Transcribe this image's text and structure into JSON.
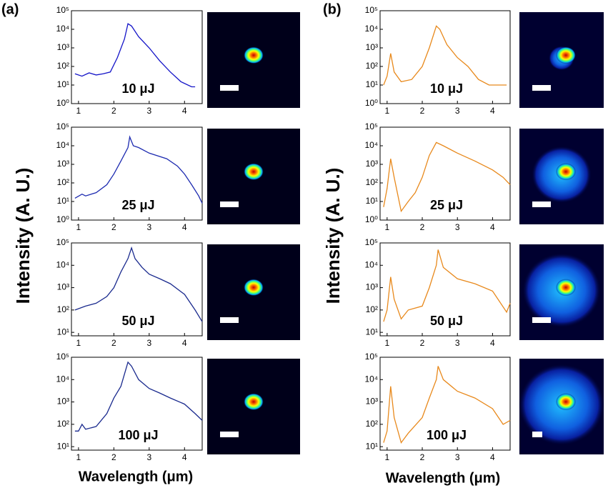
{
  "panels": [
    {
      "label": "(a)",
      "ylabel": "Intensity (A. U.)",
      "xlabel": "Wavelength (μm)"
    },
    {
      "label": "(b)",
      "ylabel": "Intensity (A. U.)",
      "xlabel": "Wavelength (μm)"
    }
  ],
  "chart_data": [
    {
      "type": "line",
      "annotation": "10 μJ",
      "color": "#1414c8",
      "log_y": true,
      "x": [
        0.9,
        1.1,
        1.3,
        1.5,
        1.7,
        1.9,
        2.1,
        2.3,
        2.4,
        2.5,
        2.7,
        3.0,
        3.3,
        3.6,
        3.9,
        4.2,
        4.3
      ],
      "values": [
        40,
        30,
        45,
        35,
        40,
        50,
        300,
        3000,
        20000,
        15000,
        4000,
        1000,
        200,
        50,
        15,
        8,
        8
      ],
      "xlim": [
        0.8,
        4.5
      ],
      "xticks": [
        1,
        2,
        3,
        4
      ],
      "ylim": [
        1,
        100000
      ],
      "yticks": [
        {
          "value": 1,
          "label": "10⁰"
        },
        {
          "value": 10,
          "label": "10¹"
        },
        {
          "value": 100,
          "label": "10²"
        },
        {
          "value": 1000,
          "label": "10³"
        },
        {
          "value": 10000,
          "label": "10⁴"
        },
        {
          "value": 100000,
          "label": "10⁵"
        }
      ]
    },
    {
      "type": "line",
      "annotation": "25 μJ",
      "color": "#1c2ab0",
      "log_y": true,
      "x": [
        0.9,
        1.1,
        1.2,
        1.5,
        1.8,
        2.0,
        2.2,
        2.4,
        2.45,
        2.55,
        2.7,
        3.0,
        3.5,
        3.8,
        4.0,
        4.2,
        4.4,
        4.5
      ],
      "values": [
        15,
        25,
        20,
        30,
        80,
        300,
        1500,
        8000,
        30000,
        10000,
        8000,
        4000,
        2000,
        800,
        300,
        80,
        20,
        8
      ],
      "xlim": [
        0.8,
        4.5
      ],
      "xticks": [
        1,
        2,
        3,
        4
      ],
      "ylim": [
        1,
        100000
      ],
      "yticks": [
        {
          "value": 1,
          "label": "10⁰"
        },
        {
          "value": 10,
          "label": "10¹"
        },
        {
          "value": 100,
          "label": "10²"
        },
        {
          "value": 1000,
          "label": "10³"
        },
        {
          "value": 10000,
          "label": "10⁴"
        },
        {
          "value": 100000,
          "label": "10⁵"
        }
      ]
    },
    {
      "type": "line",
      "annotation": "50 μJ",
      "color": "#1a2a8e",
      "log_y": true,
      "x": [
        0.9,
        1.2,
        1.5,
        1.8,
        2.0,
        2.2,
        2.4,
        2.5,
        2.6,
        2.8,
        3.0,
        3.3,
        3.6,
        4.0,
        4.3,
        4.5
      ],
      "values": [
        100,
        150,
        200,
        400,
        1000,
        5000,
        20000,
        60000,
        20000,
        8000,
        4000,
        2500,
        1500,
        500,
        100,
        30
      ],
      "xlim": [
        0.8,
        4.5
      ],
      "xticks": [
        1,
        2,
        3,
        4
      ],
      "ylim": [
        7,
        100000
      ],
      "yticks": [
        {
          "value": 10,
          "label": "10¹"
        },
        {
          "value": 100,
          "label": "10²"
        },
        {
          "value": 1000,
          "label": "10³"
        },
        {
          "value": 10000,
          "label": "10⁴"
        },
        {
          "value": 100000,
          "label": "10⁵"
        }
      ]
    },
    {
      "type": "line",
      "annotation": "100 μJ",
      "color": "#1a2a8e",
      "log_y": true,
      "x": [
        0.9,
        1.0,
        1.1,
        1.2,
        1.5,
        1.8,
        2.0,
        2.2,
        2.4,
        2.5,
        2.7,
        3.0,
        3.3,
        3.6,
        4.0,
        4.3,
        4.5
      ],
      "values": [
        50,
        50,
        100,
        60,
        80,
        300,
        1500,
        5000,
        60000,
        40000,
        10000,
        4000,
        2500,
        1500,
        800,
        300,
        150
      ],
      "xlim": [
        0.8,
        4.5
      ],
      "xticks": [
        1,
        2,
        3,
        4
      ],
      "ylim": [
        7,
        100000
      ],
      "yticks": [
        {
          "value": 10,
          "label": "10¹"
        },
        {
          "value": 100,
          "label": "10²"
        },
        {
          "value": 1000,
          "label": "10³"
        },
        {
          "value": 10000,
          "label": "10⁴"
        },
        {
          "value": 100000,
          "label": "10⁵"
        }
      ]
    },
    {
      "type": "line",
      "annotation": "10 μJ",
      "color": "#e8891c",
      "log_y": true,
      "x": [
        0.9,
        1.0,
        1.1,
        1.2,
        1.4,
        1.7,
        2.0,
        2.2,
        2.4,
        2.5,
        2.7,
        3.0,
        3.3,
        3.6,
        3.9,
        4.4
      ],
      "values": [
        10,
        30,
        500,
        50,
        15,
        20,
        100,
        1000,
        15000,
        10000,
        1500,
        300,
        100,
        20,
        10,
        10
      ],
      "xlim": [
        0.8,
        4.5
      ],
      "xticks": [
        1,
        2,
        3,
        4
      ],
      "ylim": [
        1,
        100000
      ],
      "yticks": [
        {
          "value": 1,
          "label": "10⁰"
        },
        {
          "value": 10,
          "label": "10¹"
        },
        {
          "value": 100,
          "label": "10²"
        },
        {
          "value": 1000,
          "label": "10³"
        },
        {
          "value": 10000,
          "label": "10⁴"
        },
        {
          "value": 100000,
          "label": "10⁵"
        }
      ]
    },
    {
      "type": "line",
      "annotation": "25 μJ",
      "color": "#e8891c",
      "log_y": true,
      "x": [
        0.9,
        1.0,
        1.1,
        1.2,
        1.4,
        1.6,
        1.8,
        2.0,
        2.2,
        2.4,
        2.6,
        3.0,
        3.5,
        4.0,
        4.3,
        4.5
      ],
      "values": [
        5,
        50,
        2000,
        200,
        3,
        10,
        30,
        200,
        3000,
        15000,
        10000,
        4000,
        1500,
        500,
        200,
        80
      ],
      "xlim": [
        0.8,
        4.5
      ],
      "xticks": [
        1,
        2,
        3,
        4
      ],
      "ylim": [
        1,
        100000
      ],
      "yticks": [
        {
          "value": 1,
          "label": "10⁰"
        },
        {
          "value": 10,
          "label": "10¹"
        },
        {
          "value": 100,
          "label": "10²"
        },
        {
          "value": 1000,
          "label": "10³"
        },
        {
          "value": 10000,
          "label": "10⁴"
        },
        {
          "value": 100000,
          "label": "10⁵"
        }
      ]
    },
    {
      "type": "line",
      "annotation": "50 μJ",
      "color": "#e8891c",
      "log_y": true,
      "x": [
        0.9,
        1.0,
        1.1,
        1.2,
        1.4,
        1.6,
        2.0,
        2.2,
        2.4,
        2.45,
        2.6,
        3.0,
        3.5,
        4.0,
        4.4,
        4.5
      ],
      "values": [
        30,
        100,
        3000,
        300,
        40,
        100,
        150,
        1000,
        10000,
        50000,
        8000,
        2500,
        1500,
        700,
        80,
        200
      ],
      "xlim": [
        0.8,
        4.5
      ],
      "xticks": [
        1,
        2,
        3,
        4
      ],
      "ylim": [
        7,
        100000
      ],
      "yticks": [
        {
          "value": 10,
          "label": "10¹"
        },
        {
          "value": 100,
          "label": "10²"
        },
        {
          "value": 1000,
          "label": "10³"
        },
        {
          "value": 10000,
          "label": "10⁴"
        },
        {
          "value": 100000,
          "label": "10⁵"
        }
      ]
    },
    {
      "type": "line",
      "annotation": "100 μJ",
      "color": "#e8891c",
      "log_y": true,
      "x": [
        0.9,
        1.0,
        1.1,
        1.2,
        1.4,
        1.6,
        2.0,
        2.2,
        2.4,
        2.45,
        2.6,
        3.0,
        3.5,
        4.0,
        4.3,
        4.5
      ],
      "values": [
        15,
        50,
        5000,
        200,
        15,
        40,
        200,
        1500,
        10000,
        40000,
        10000,
        3000,
        1500,
        500,
        100,
        150
      ],
      "xlim": [
        0.8,
        4.5
      ],
      "xticks": [
        1,
        2,
        3,
        4
      ],
      "ylim": [
        7,
        100000
      ],
      "yticks": [
        {
          "value": 10,
          "label": "10¹"
        },
        {
          "value": 100,
          "label": "10²"
        },
        {
          "value": 1000,
          "label": "10³"
        },
        {
          "value": 10000,
          "label": "10⁴"
        },
        {
          "value": 100000,
          "label": "10⁵"
        }
      ]
    }
  ]
}
